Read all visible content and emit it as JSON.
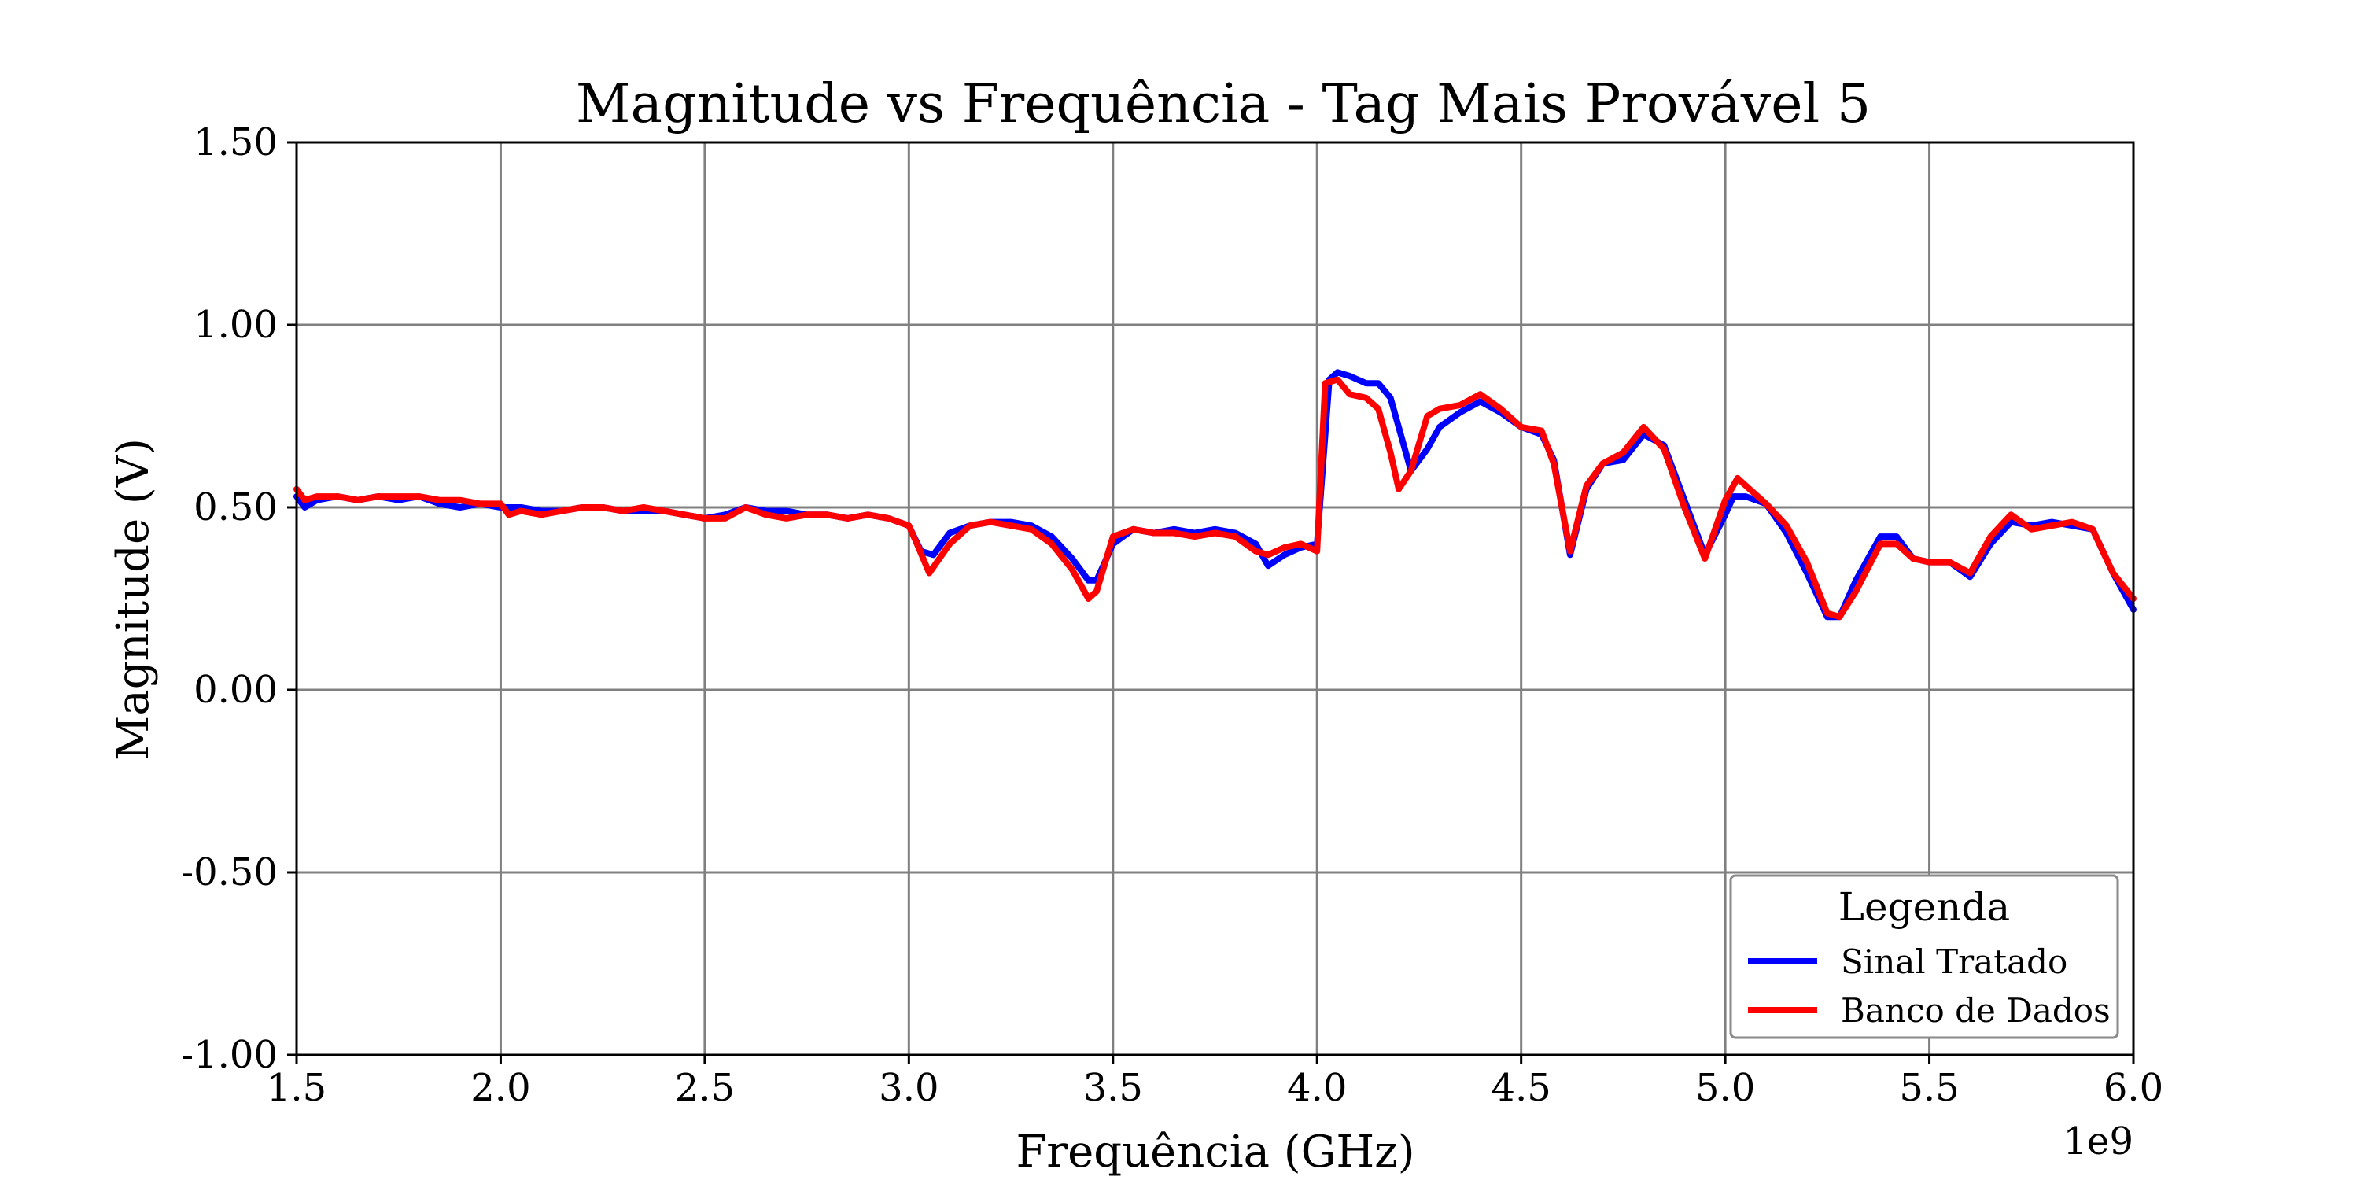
{
  "chart_data": {
    "type": "line",
    "title": "Magnitude vs Frequência - Tag Mais Provável 5",
    "xlabel": "Frequência (GHz)",
    "ylabel": "Magnitude (V)",
    "x_offset_label": "1e9",
    "xlim": [
      1.5,
      6.0
    ],
    "ylim": [
      -1.0,
      1.5
    ],
    "x_ticks": [
      1.5,
      2.0,
      2.5,
      3.0,
      3.5,
      4.0,
      4.5,
      5.0,
      5.5,
      6.0
    ],
    "x_tick_labels": [
      "1.5",
      "2.0",
      "2.5",
      "3.0",
      "3.5",
      "4.0",
      "4.5",
      "5.0",
      "5.5",
      "6.0"
    ],
    "y_ticks": [
      -1.0,
      -0.5,
      0.0,
      0.5,
      1.0,
      1.5
    ],
    "y_tick_labels": [
      "-1.00",
      "-0.50",
      "0.00",
      "0.50",
      "1.00",
      "1.50"
    ],
    "grid": true,
    "legend": {
      "title": "Legenda",
      "placement": "lower-right"
    },
    "series": [
      {
        "name": "Sinal Tratado",
        "color": "#0000ff",
        "points": [
          [
            1.5,
            0.53
          ],
          [
            1.52,
            0.5
          ],
          [
            1.55,
            0.52
          ],
          [
            1.6,
            0.53
          ],
          [
            1.65,
            0.52
          ],
          [
            1.7,
            0.53
          ],
          [
            1.75,
            0.52
          ],
          [
            1.8,
            0.53
          ],
          [
            1.85,
            0.51
          ],
          [
            1.9,
            0.5
          ],
          [
            1.95,
            0.51
          ],
          [
            2.0,
            0.5
          ],
          [
            2.05,
            0.5
          ],
          [
            2.1,
            0.49
          ],
          [
            2.15,
            0.49
          ],
          [
            2.2,
            0.5
          ],
          [
            2.25,
            0.5
          ],
          [
            2.3,
            0.49
          ],
          [
            2.35,
            0.49
          ],
          [
            2.4,
            0.49
          ],
          [
            2.45,
            0.48
          ],
          [
            2.5,
            0.47
          ],
          [
            2.55,
            0.48
          ],
          [
            2.6,
            0.5
          ],
          [
            2.65,
            0.49
          ],
          [
            2.7,
            0.49
          ],
          [
            2.75,
            0.48
          ],
          [
            2.8,
            0.48
          ],
          [
            2.85,
            0.47
          ],
          [
            2.9,
            0.48
          ],
          [
            2.95,
            0.47
          ],
          [
            3.0,
            0.45
          ],
          [
            3.03,
            0.38
          ],
          [
            3.06,
            0.37
          ],
          [
            3.1,
            0.43
          ],
          [
            3.15,
            0.45
          ],
          [
            3.2,
            0.46
          ],
          [
            3.25,
            0.46
          ],
          [
            3.3,
            0.45
          ],
          [
            3.35,
            0.42
          ],
          [
            3.4,
            0.36
          ],
          [
            3.44,
            0.3
          ],
          [
            3.46,
            0.3
          ],
          [
            3.5,
            0.4
          ],
          [
            3.55,
            0.44
          ],
          [
            3.6,
            0.43
          ],
          [
            3.65,
            0.44
          ],
          [
            3.7,
            0.43
          ],
          [
            3.75,
            0.44
          ],
          [
            3.8,
            0.43
          ],
          [
            3.85,
            0.4
          ],
          [
            3.88,
            0.34
          ],
          [
            3.92,
            0.37
          ],
          [
            3.96,
            0.39
          ],
          [
            4.0,
            0.4
          ],
          [
            4.03,
            0.85
          ],
          [
            4.05,
            0.87
          ],
          [
            4.08,
            0.86
          ],
          [
            4.12,
            0.84
          ],
          [
            4.15,
            0.84
          ],
          [
            4.18,
            0.8
          ],
          [
            4.2,
            0.72
          ],
          [
            4.23,
            0.6
          ],
          [
            4.27,
            0.66
          ],
          [
            4.3,
            0.72
          ],
          [
            4.35,
            0.76
          ],
          [
            4.4,
            0.79
          ],
          [
            4.45,
            0.76
          ],
          [
            4.5,
            0.72
          ],
          [
            4.55,
            0.7
          ],
          [
            4.58,
            0.63
          ],
          [
            4.62,
            0.37
          ],
          [
            4.66,
            0.55
          ],
          [
            4.7,
            0.62
          ],
          [
            4.75,
            0.63
          ],
          [
            4.8,
            0.7
          ],
          [
            4.85,
            0.67
          ],
          [
            4.9,
            0.52
          ],
          [
            4.95,
            0.37
          ],
          [
            5.0,
            0.48
          ],
          [
            5.02,
            0.53
          ],
          [
            5.05,
            0.53
          ],
          [
            5.1,
            0.51
          ],
          [
            5.15,
            0.43
          ],
          [
            5.2,
            0.32
          ],
          [
            5.25,
            0.2
          ],
          [
            5.28,
            0.2
          ],
          [
            5.32,
            0.3
          ],
          [
            5.38,
            0.42
          ],
          [
            5.42,
            0.42
          ],
          [
            5.46,
            0.36
          ],
          [
            5.5,
            0.35
          ],
          [
            5.55,
            0.35
          ],
          [
            5.6,
            0.31
          ],
          [
            5.65,
            0.4
          ],
          [
            5.7,
            0.46
          ],
          [
            5.75,
            0.45
          ],
          [
            5.8,
            0.46
          ],
          [
            5.85,
            0.45
          ],
          [
            5.9,
            0.44
          ],
          [
            5.95,
            0.32
          ],
          [
            6.0,
            0.22
          ]
        ]
      },
      {
        "name": "Banco de Dados",
        "color": "#ff0000",
        "points": [
          [
            1.5,
            0.55
          ],
          [
            1.52,
            0.52
          ],
          [
            1.55,
            0.53
          ],
          [
            1.6,
            0.53
          ],
          [
            1.65,
            0.52
          ],
          [
            1.7,
            0.53
          ],
          [
            1.75,
            0.53
          ],
          [
            1.8,
            0.53
          ],
          [
            1.85,
            0.52
          ],
          [
            1.9,
            0.52
          ],
          [
            1.95,
            0.51
          ],
          [
            2.0,
            0.51
          ],
          [
            2.02,
            0.48
          ],
          [
            2.05,
            0.49
          ],
          [
            2.1,
            0.48
          ],
          [
            2.15,
            0.49
          ],
          [
            2.2,
            0.5
          ],
          [
            2.25,
            0.5
          ],
          [
            2.3,
            0.49
          ],
          [
            2.35,
            0.5
          ],
          [
            2.4,
            0.49
          ],
          [
            2.45,
            0.48
          ],
          [
            2.5,
            0.47
          ],
          [
            2.55,
            0.47
          ],
          [
            2.6,
            0.5
          ],
          [
            2.65,
            0.48
          ],
          [
            2.7,
            0.47
          ],
          [
            2.75,
            0.48
          ],
          [
            2.8,
            0.48
          ],
          [
            2.85,
            0.47
          ],
          [
            2.9,
            0.48
          ],
          [
            2.95,
            0.47
          ],
          [
            3.0,
            0.45
          ],
          [
            3.02,
            0.4
          ],
          [
            3.05,
            0.32
          ],
          [
            3.1,
            0.4
          ],
          [
            3.15,
            0.45
          ],
          [
            3.2,
            0.46
          ],
          [
            3.25,
            0.45
          ],
          [
            3.3,
            0.44
          ],
          [
            3.35,
            0.4
          ],
          [
            3.4,
            0.33
          ],
          [
            3.44,
            0.25
          ],
          [
            3.46,
            0.27
          ],
          [
            3.5,
            0.42
          ],
          [
            3.55,
            0.44
          ],
          [
            3.6,
            0.43
          ],
          [
            3.65,
            0.43
          ],
          [
            3.7,
            0.42
          ],
          [
            3.75,
            0.43
          ],
          [
            3.8,
            0.42
          ],
          [
            3.85,
            0.38
          ],
          [
            3.88,
            0.37
          ],
          [
            3.92,
            0.39
          ],
          [
            3.96,
            0.4
          ],
          [
            4.0,
            0.38
          ],
          [
            4.02,
            0.84
          ],
          [
            4.05,
            0.85
          ],
          [
            4.08,
            0.81
          ],
          [
            4.12,
            0.8
          ],
          [
            4.15,
            0.77
          ],
          [
            4.18,
            0.65
          ],
          [
            4.2,
            0.55
          ],
          [
            4.23,
            0.6
          ],
          [
            4.27,
            0.75
          ],
          [
            4.3,
            0.77
          ],
          [
            4.35,
            0.78
          ],
          [
            4.4,
            0.81
          ],
          [
            4.45,
            0.77
          ],
          [
            4.5,
            0.72
          ],
          [
            4.55,
            0.71
          ],
          [
            4.58,
            0.62
          ],
          [
            4.62,
            0.38
          ],
          [
            4.66,
            0.56
          ],
          [
            4.7,
            0.62
          ],
          [
            4.75,
            0.65
          ],
          [
            4.8,
            0.72
          ],
          [
            4.85,
            0.66
          ],
          [
            4.9,
            0.5
          ],
          [
            4.95,
            0.36
          ],
          [
            5.0,
            0.52
          ],
          [
            5.03,
            0.58
          ],
          [
            5.06,
            0.55
          ],
          [
            5.1,
            0.51
          ],
          [
            5.15,
            0.45
          ],
          [
            5.2,
            0.35
          ],
          [
            5.25,
            0.21
          ],
          [
            5.28,
            0.2
          ],
          [
            5.32,
            0.27
          ],
          [
            5.38,
            0.4
          ],
          [
            5.42,
            0.4
          ],
          [
            5.46,
            0.36
          ],
          [
            5.5,
            0.35
          ],
          [
            5.55,
            0.35
          ],
          [
            5.6,
            0.32
          ],
          [
            5.65,
            0.42
          ],
          [
            5.7,
            0.48
          ],
          [
            5.75,
            0.44
          ],
          [
            5.8,
            0.45
          ],
          [
            5.85,
            0.46
          ],
          [
            5.9,
            0.44
          ],
          [
            5.95,
            0.32
          ],
          [
            6.0,
            0.25
          ]
        ]
      }
    ]
  }
}
